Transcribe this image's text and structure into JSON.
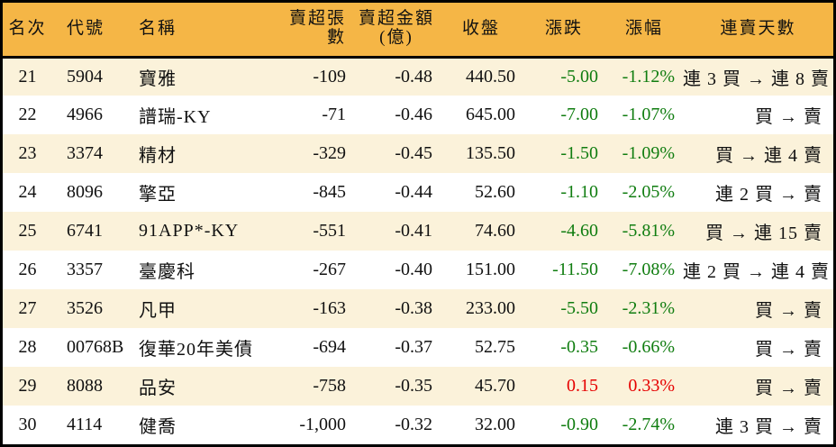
{
  "chart_data": {
    "type": "table",
    "columns": [
      {
        "key": "rank",
        "label": "名次"
      },
      {
        "key": "code",
        "label": "代號"
      },
      {
        "key": "name",
        "label": "名稱"
      },
      {
        "key": "volume",
        "label": "賣超張數"
      },
      {
        "key": "amount",
        "label": "賣超金額",
        "sublabel": "(億)"
      },
      {
        "key": "close",
        "label": "收盤"
      },
      {
        "key": "change",
        "label": "漲跌"
      },
      {
        "key": "pct",
        "label": "漲幅"
      },
      {
        "key": "streak",
        "label": "連賣天數"
      }
    ],
    "rows": [
      {
        "rank": "21",
        "code": "5904",
        "name": "寶雅",
        "volume": "-109",
        "amount": "-0.48",
        "close": "440.50",
        "change": "-5.00",
        "pct": "-1.12%",
        "dir": "down",
        "streak": "連 3 買 → 連 8 賣"
      },
      {
        "rank": "22",
        "code": "4966",
        "name": "譜瑞-KY",
        "volume": "-71",
        "amount": "-0.46",
        "close": "645.00",
        "change": "-7.00",
        "pct": "-1.07%",
        "dir": "down",
        "streak": "買 → 賣"
      },
      {
        "rank": "23",
        "code": "3374",
        "name": "精材",
        "volume": "-329",
        "amount": "-0.45",
        "close": "135.50",
        "change": "-1.50",
        "pct": "-1.09%",
        "dir": "down",
        "streak": "買 → 連 4 賣"
      },
      {
        "rank": "24",
        "code": "8096",
        "name": "擎亞",
        "volume": "-845",
        "amount": "-0.44",
        "close": "52.60",
        "change": "-1.10",
        "pct": "-2.05%",
        "dir": "down",
        "streak": "連 2 買 → 賣"
      },
      {
        "rank": "25",
        "code": "6741",
        "name": "91APP*-KY",
        "volume": "-551",
        "amount": "-0.41",
        "close": "74.60",
        "change": "-4.60",
        "pct": "-5.81%",
        "dir": "down",
        "streak": "買 → 連 15 賣"
      },
      {
        "rank": "26",
        "code": "3357",
        "name": "臺慶科",
        "volume": "-267",
        "amount": "-0.40",
        "close": "151.00",
        "change": "-11.50",
        "pct": "-7.08%",
        "dir": "down",
        "streak": "連 2 買 → 連 4 賣"
      },
      {
        "rank": "27",
        "code": "3526",
        "name": "凡甲",
        "volume": "-163",
        "amount": "-0.38",
        "close": "233.00",
        "change": "-5.50",
        "pct": "-2.31%",
        "dir": "down",
        "streak": "買 → 賣"
      },
      {
        "rank": "28",
        "code": "00768B",
        "name": "復華20年美債",
        "volume": "-694",
        "amount": "-0.37",
        "close": "52.75",
        "change": "-0.35",
        "pct": "-0.66%",
        "dir": "down",
        "streak": "買 → 賣"
      },
      {
        "rank": "29",
        "code": "8088",
        "name": "品安",
        "volume": "-758",
        "amount": "-0.35",
        "close": "45.70",
        "change": "0.15",
        "pct": "0.33%",
        "dir": "up",
        "streak": "買 → 賣"
      },
      {
        "rank": "30",
        "code": "4114",
        "name": "健喬",
        "volume": "-1,000",
        "amount": "-0.32",
        "close": "32.00",
        "change": "-0.90",
        "pct": "-2.74%",
        "dir": "down",
        "streak": "連 3 買 → 賣"
      }
    ]
  },
  "colors": {
    "header_bg": "#F5B646",
    "row_odd_bg": "#FBF2DA",
    "row_even_bg": "#FFFFFF",
    "border": "#000000",
    "text": "#111111",
    "down_green": "#107D10",
    "up_red": "#E60000"
  }
}
